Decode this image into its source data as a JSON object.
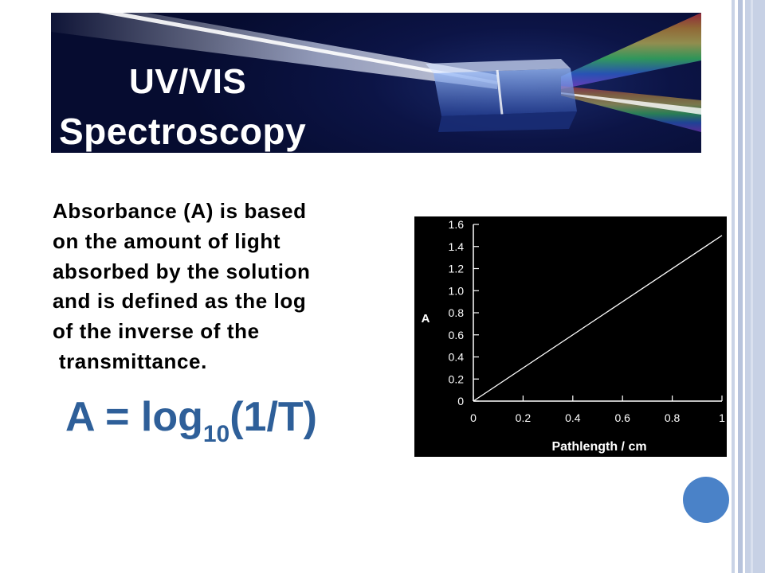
{
  "banner": {
    "title_line1": "UV/VIS",
    "title_line2": "Spectroscopy"
  },
  "description_lines": [
    "Absorbance (A) is based",
    "on the amount of light",
    "absorbed by the solution",
    "and is defined as the log",
    "of the inverse of the",
    " transmittance."
  ],
  "equation": {
    "lhs": "A = log",
    "subscript": "10",
    "rhs": "(1/T)"
  },
  "colors": {
    "equation": "#2e5f99",
    "circle": "#4a82c8",
    "chart_bg": "#000000"
  },
  "chart_data": {
    "type": "line",
    "xlabel": "Pathlength / cm",
    "ylabel": "A",
    "xlim": [
      0,
      1
    ],
    "ylim": [
      0,
      1.6
    ],
    "x_ticks": [
      0,
      0.2,
      0.4,
      0.6,
      0.8,
      1
    ],
    "x_tick_labels": [
      "0",
      "0.2",
      "0.4",
      "0.6",
      "0.8",
      "1"
    ],
    "y_ticks": [
      0,
      0.2,
      0.4,
      0.6,
      0.8,
      1.0,
      1.2,
      1.4,
      1.6
    ],
    "y_tick_labels": [
      "0",
      "0.2",
      "0.4",
      "0.6",
      "0.8",
      "1.0",
      "1.2",
      "1.4",
      "1.6"
    ],
    "series": [
      {
        "x": [
          0,
          1
        ],
        "y": [
          0,
          1.5
        ]
      }
    ],
    "grid": false
  }
}
